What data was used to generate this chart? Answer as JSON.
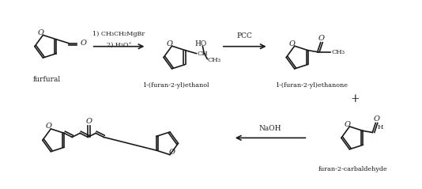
{
  "bg_color": "#ffffff",
  "line_color": "#1a1a1a",
  "text_color": "#1a1a1a",
  "figsize": [
    5.34,
    2.39
  ],
  "dpi": 100,
  "labels": {
    "furfural": "furfural",
    "step1": "1) CH₃CH₂MgBr\n2) H₃O⁺",
    "pcc": "PCC",
    "compound2": "1-(furan-2-yl)ethanol",
    "compound3": "1-(furan-2-yl)ethanone",
    "naoh": "NaOH",
    "furan2carb": "furan-2-carbaldehyde",
    "plus": "+"
  }
}
